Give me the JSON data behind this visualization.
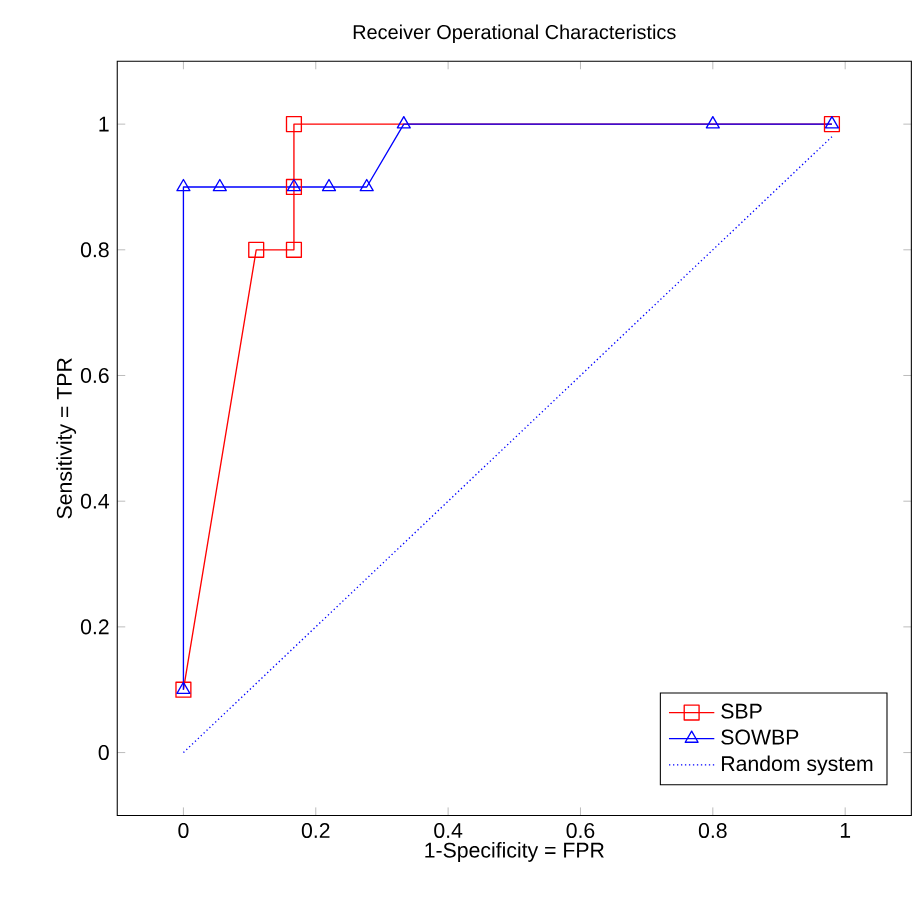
{
  "chart_data": {
    "type": "line",
    "title": "Receiver Operational Characteristics",
    "xlabel": "1-Specificity = FPR",
    "ylabel": "Sensitivity = TPR",
    "xlim": [
      -0.1,
      1.1
    ],
    "ylim": [
      -0.1,
      1.1
    ],
    "xticks": [
      0,
      0.2,
      0.4,
      0.6,
      0.8,
      1
    ],
    "yticks": [
      0,
      0.2,
      0.4,
      0.6,
      0.8,
      1
    ],
    "grid": false,
    "legend": "bottom right",
    "series": [
      {
        "name": "SBP",
        "color": "#ff0000",
        "marker": "square",
        "line_style": "solid",
        "x": [
          0,
          0.11,
          0.167,
          0.167,
          0.167,
          0.98
        ],
        "values": [
          0.1,
          0.8,
          0.8,
          0.9,
          1.0,
          1.0
        ]
      },
      {
        "name": "SOWBP",
        "color": "#0000ff",
        "marker": "triangle",
        "line_style": "solid",
        "x": [
          0,
          0,
          0.055,
          0.167,
          0.22,
          0.277,
          0.333,
          0.8,
          0.98
        ],
        "values": [
          0.1,
          0.9,
          0.9,
          0.9,
          0.9,
          0.9,
          1.0,
          1.0,
          1.0
        ]
      },
      {
        "name": "Random system",
        "color": "#0000ff",
        "marker": "none",
        "line_style": "dotted",
        "x": [
          0,
          0.98
        ],
        "values": [
          0,
          0.98
        ]
      }
    ]
  }
}
